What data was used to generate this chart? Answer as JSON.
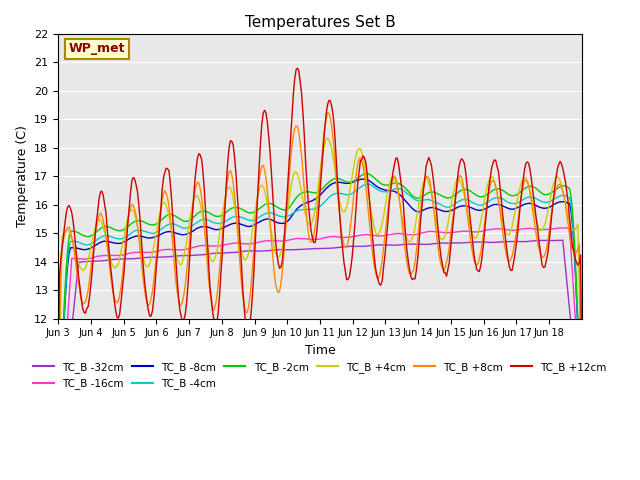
{
  "title": "Temperatures Set B",
  "xlabel": "Time",
  "ylabel": "Temperature (C)",
  "ylim": [
    12.0,
    22.0
  ],
  "yticks": [
    12.0,
    13.0,
    14.0,
    15.0,
    16.0,
    17.0,
    18.0,
    19.0,
    20.0,
    21.0,
    22.0
  ],
  "bg_color": "#e8e8e8",
  "fig_color": "#ffffff",
  "annotation_text": "WP_met",
  "annotation_bg": "#ffffcc",
  "annotation_border": "#aa8800",
  "annotation_text_color": "#880000",
  "series": [
    {
      "label": "TC_B -32cm",
      "color": "#9933cc"
    },
    {
      "label": "TC_B -16cm",
      "color": "#ff33cc"
    },
    {
      "label": "TC_B -8cm",
      "color": "#0000cc"
    },
    {
      "label": "TC_B -4cm",
      "color": "#00cccc"
    },
    {
      "label": "TC_B -2cm",
      "color": "#00cc00"
    },
    {
      "label": "TC_B +4cm",
      "color": "#cccc00"
    },
    {
      "label": "TC_B +8cm",
      "color": "#ff8800"
    },
    {
      "label": "TC_B +12cm",
      "color": "#cc0000"
    }
  ],
  "x_tick_labels": [
    "Jun 3",
    "Jun 4",
    "Jun 5",
    "Jun 6",
    "Jun 7",
    "Jun 8",
    "Jun 9",
    "Jun 10",
    "Jun 11",
    "Jun 12",
    "Jun 13",
    "Jun 14",
    "Jun 15",
    "Jun 16",
    "Jun 17",
    "Jun 18"
  ],
  "n_days": 16,
  "pts_per_day": 24
}
